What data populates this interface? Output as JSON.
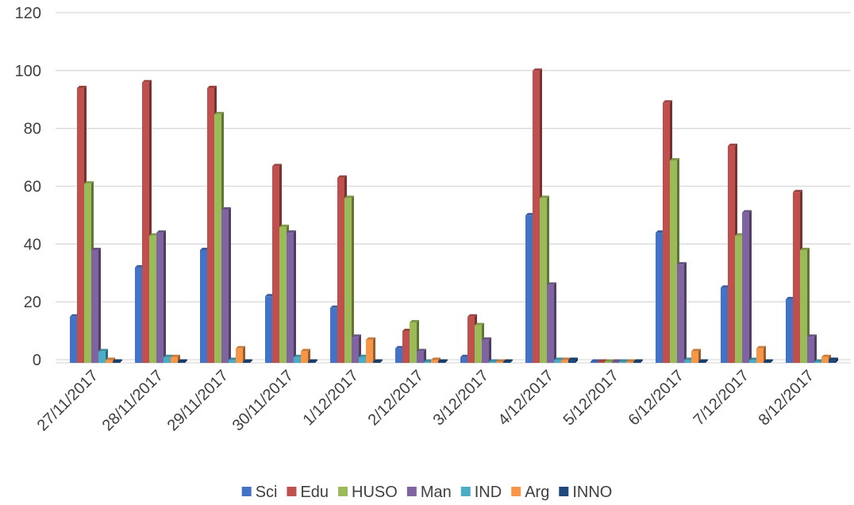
{
  "chart_data": {
    "type": "bar",
    "title": "",
    "xlabel": "",
    "ylabel": "",
    "ylim": [
      0,
      120
    ],
    "yticks": [
      0,
      20,
      40,
      60,
      80,
      100,
      120
    ],
    "grid": true,
    "legend_position": "bottom",
    "categories": [
      "27/11/2017",
      "28/11/2017",
      "29/11/2017",
      "30/11/2017",
      "1/12/2017",
      "2/12/2017",
      "3/12/2017",
      "4/12/2017",
      "5/12/2017",
      "6/12/2017",
      "7/12/2017",
      "8/12/2017"
    ],
    "series": [
      {
        "name": "Sci",
        "color": "#4472c4",
        "values": [
          16,
          33,
          39,
          23,
          19,
          5,
          2,
          51,
          0,
          45,
          26,
          22
        ]
      },
      {
        "name": "Edu",
        "color": "#c0504d",
        "values": [
          95,
          97,
          95,
          68,
          64,
          11,
          16,
          101,
          0,
          90,
          75,
          59
        ]
      },
      {
        "name": "HUSO",
        "color": "#9bbb59",
        "values": [
          62,
          44,
          86,
          47,
          57,
          14,
          13,
          57,
          0,
          70,
          44,
          39
        ]
      },
      {
        "name": "Man",
        "color": "#8064a2",
        "values": [
          39,
          45,
          53,
          45,
          9,
          4,
          8,
          27,
          0,
          34,
          52,
          9
        ]
      },
      {
        "name": "IND",
        "color": "#4bacc6",
        "values": [
          4,
          2,
          1,
          2,
          2,
          0,
          0,
          1,
          0,
          1,
          1,
          0
        ]
      },
      {
        "name": "Arg",
        "color": "#f79646",
        "values": [
          1,
          2,
          5,
          4,
          8,
          1,
          0,
          1,
          0,
          4,
          5,
          2
        ]
      },
      {
        "name": "INNO",
        "color": "#1f497d",
        "values": [
          0,
          0,
          0,
          0,
          0,
          0,
          0,
          1,
          0,
          0,
          0,
          1
        ]
      }
    ]
  }
}
